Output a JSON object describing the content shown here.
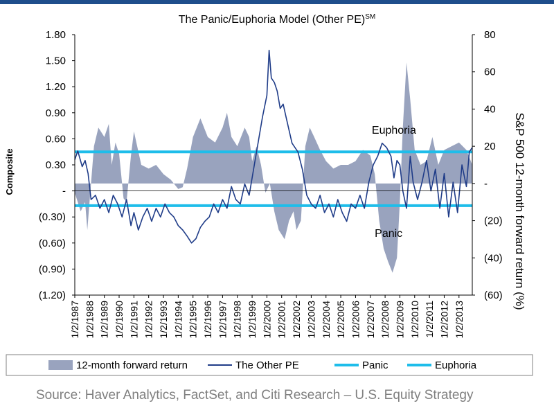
{
  "chart_data": {
    "type": "area-line",
    "title": "The Panic/Euphoria Model (Other PE)",
    "title_superscript": "SM",
    "left_axis": {
      "label": "Composite",
      "range": [
        -1.2,
        1.8
      ],
      "ticks": [
        1.8,
        1.5,
        1.2,
        0.9,
        0.6,
        0.3,
        0,
        -0.3,
        -0.6,
        -0.9,
        -1.2
      ],
      "tick_labels": [
        "1.80",
        "1.50",
        "1.20",
        "0.90",
        "0.60",
        "0.30",
        "-",
        "(0.30)",
        "(0.60)",
        "(0.90)",
        "(1.20)"
      ]
    },
    "right_axis": {
      "label": "S&P 500 12-month forward return (%)",
      "range": [
        -60,
        80
      ],
      "ticks": [
        80,
        60,
        40,
        20,
        0,
        -20,
        -40,
        -60
      ],
      "tick_labels": [
        "80",
        "60",
        "40",
        "20",
        "-",
        "(20)",
        "(40)",
        "(60)"
      ]
    },
    "x_axis": {
      "start_year": 1987,
      "end_year": 2013.9,
      "tick_labels": [
        "1/2/1987",
        "1/2/1988",
        "1/2/1989",
        "1/2/1990",
        "1/2/1991",
        "1/2/1992",
        "1/2/1993",
        "1/2/1994",
        "1/2/1995",
        "1/2/1996",
        "1/2/1997",
        "1/2/1998",
        "1/2/1999",
        "1/2/2000",
        "1/2/2001",
        "1/2/2002",
        "1/2/2003",
        "1/2/2004",
        "1/2/2005",
        "1/2/2006",
        "1/2/2007",
        "1/2/2008",
        "1/2/2009",
        "1/2/2010",
        "1/2/2011",
        "1/2/2012",
        "1/2/2013"
      ]
    },
    "thresholds": {
      "panic": -0.17,
      "euphoria": 0.45
    },
    "annotations": [
      {
        "text": "Euphoria",
        "x": 2007.1,
        "y": 0.66
      },
      {
        "text": "Panic",
        "x": 2007.3,
        "y": -0.53
      }
    ],
    "forward_return": {
      "name": "12-month forward return",
      "x": [
        1987.0,
        1987.4,
        1987.7,
        1987.85,
        1988.0,
        1988.3,
        1988.6,
        1989.0,
        1989.3,
        1989.5,
        1989.75,
        1990.0,
        1990.3,
        1990.5,
        1990.8,
        1991.0,
        1991.5,
        1992.0,
        1992.5,
        1993.0,
        1993.5,
        1994.0,
        1994.3,
        1994.6,
        1995.0,
        1995.5,
        1996.0,
        1996.5,
        1997.0,
        1997.3,
        1997.6,
        1998.0,
        1998.5,
        1998.8,
        1999.0,
        1999.3,
        1999.6,
        1999.9,
        2000.2,
        2000.5,
        2000.8,
        2001.2,
        2001.5,
        2001.8,
        2002.0,
        2002.3,
        2002.6,
        2002.9,
        2003.2,
        2003.6,
        2004.0,
        2004.5,
        2005.0,
        2005.5,
        2006.0,
        2006.5,
        2007.0,
        2007.3,
        2007.6,
        2007.9,
        2008.2,
        2008.5,
        2008.8,
        2009.0,
        2009.2,
        2009.45,
        2009.7,
        2010.0,
        2010.4,
        2010.8,
        2011.2,
        2011.6,
        2012.0,
        2012.5,
        2013.0,
        2013.5,
        2013.9
      ],
      "values": [
        -5,
        -15,
        -10,
        -25,
        -10,
        20,
        30,
        25,
        32,
        10,
        22,
        16,
        -8,
        -10,
        15,
        28,
        10,
        8,
        10,
        5,
        2,
        -3,
        -2,
        8,
        25,
        35,
        25,
        22,
        30,
        38,
        25,
        20,
        30,
        25,
        12,
        20,
        10,
        -5,
        0,
        -15,
        -25,
        -30,
        -20,
        -15,
        -25,
        -20,
        20,
        30,
        25,
        18,
        12,
        8,
        10,
        10,
        12,
        18,
        15,
        5,
        -20,
        -35,
        -42,
        -48,
        -40,
        -10,
        30,
        65,
        45,
        18,
        10,
        12,
        25,
        10,
        18,
        20,
        22,
        18,
        10
      ]
    },
    "other_pe": {
      "name": "The Other PE",
      "x": [
        1987.0,
        1987.2,
        1987.5,
        1987.7,
        1987.9,
        1988.1,
        1988.4,
        1988.7,
        1989.0,
        1989.3,
        1989.6,
        1989.9,
        1990.2,
        1990.5,
        1990.8,
        1991.0,
        1991.3,
        1991.6,
        1991.9,
        1992.2,
        1992.5,
        1992.8,
        1993.1,
        1993.4,
        1993.7,
        1994.0,
        1994.3,
        1994.6,
        1994.9,
        1995.2,
        1995.5,
        1995.8,
        1996.1,
        1996.4,
        1996.7,
        1997.0,
        1997.3,
        1997.6,
        1997.9,
        1998.2,
        1998.5,
        1998.8,
        1999.1,
        1999.4,
        1999.7,
        2000.0,
        2000.15,
        2000.3,
        2000.5,
        2000.7,
        2000.9,
        2001.1,
        2001.3,
        2001.5,
        2001.7,
        2001.9,
        2002.1,
        2002.4,
        2002.7,
        2003.0,
        2003.3,
        2003.6,
        2003.9,
        2004.2,
        2004.5,
        2004.8,
        2005.1,
        2005.4,
        2005.7,
        2006.0,
        2006.3,
        2006.6,
        2006.9,
        2007.2,
        2007.5,
        2007.8,
        2008.1,
        2008.4,
        2008.6,
        2008.8,
        2009.0,
        2009.2,
        2009.45,
        2009.7,
        2009.9,
        2010.2,
        2010.5,
        2010.8,
        2011.1,
        2011.4,
        2011.7,
        2012.0,
        2012.3,
        2012.6,
        2012.9,
        2013.2,
        2013.5,
        2013.7,
        2013.9
      ],
      "values": [
        0.36,
        0.46,
        0.28,
        0.35,
        0.2,
        -0.1,
        -0.05,
        -0.2,
        -0.1,
        -0.25,
        -0.05,
        -0.15,
        -0.3,
        -0.1,
        -0.4,
        -0.25,
        -0.45,
        -0.3,
        -0.2,
        -0.35,
        -0.2,
        -0.3,
        -0.15,
        -0.25,
        -0.3,
        -0.4,
        -0.45,
        -0.52,
        -0.6,
        -0.55,
        -0.42,
        -0.35,
        -0.3,
        -0.15,
        -0.25,
        -0.1,
        -0.2,
        0.05,
        -0.1,
        -0.15,
        0.08,
        -0.05,
        0.25,
        0.55,
        0.85,
        1.1,
        1.62,
        1.3,
        1.25,
        1.15,
        0.95,
        1.0,
        0.85,
        0.7,
        0.55,
        0.5,
        0.45,
        0.25,
        -0.05,
        -0.15,
        -0.2,
        -0.05,
        -0.25,
        -0.15,
        -0.3,
        -0.1,
        -0.25,
        -0.35,
        -0.15,
        -0.2,
        -0.05,
        -0.2,
        0.1,
        0.3,
        0.4,
        0.55,
        0.5,
        0.4,
        0.15,
        0.35,
        0.3,
        0.0,
        -0.2,
        0.4,
        0.1,
        -0.1,
        0.1,
        0.35,
        0.0,
        0.25,
        -0.2,
        0.2,
        -0.3,
        0.1,
        -0.25,
        0.3,
        0.05,
        0.45,
        0.5
      ]
    },
    "legend": {
      "position": "bottom",
      "entries": [
        "12-month forward return",
        "The Other PE",
        "Panic",
        "Euphoria"
      ]
    },
    "colors": {
      "forward_return": "#99a3be",
      "other_pe": "#1f3c88",
      "panic": "#1ebdea",
      "euphoria": "#1ebdea",
      "title_bar": "#1f4e8c"
    },
    "source": "Source: Haver Analytics, FactSet, and Citi Research – U.S. Equity Strategy"
  }
}
